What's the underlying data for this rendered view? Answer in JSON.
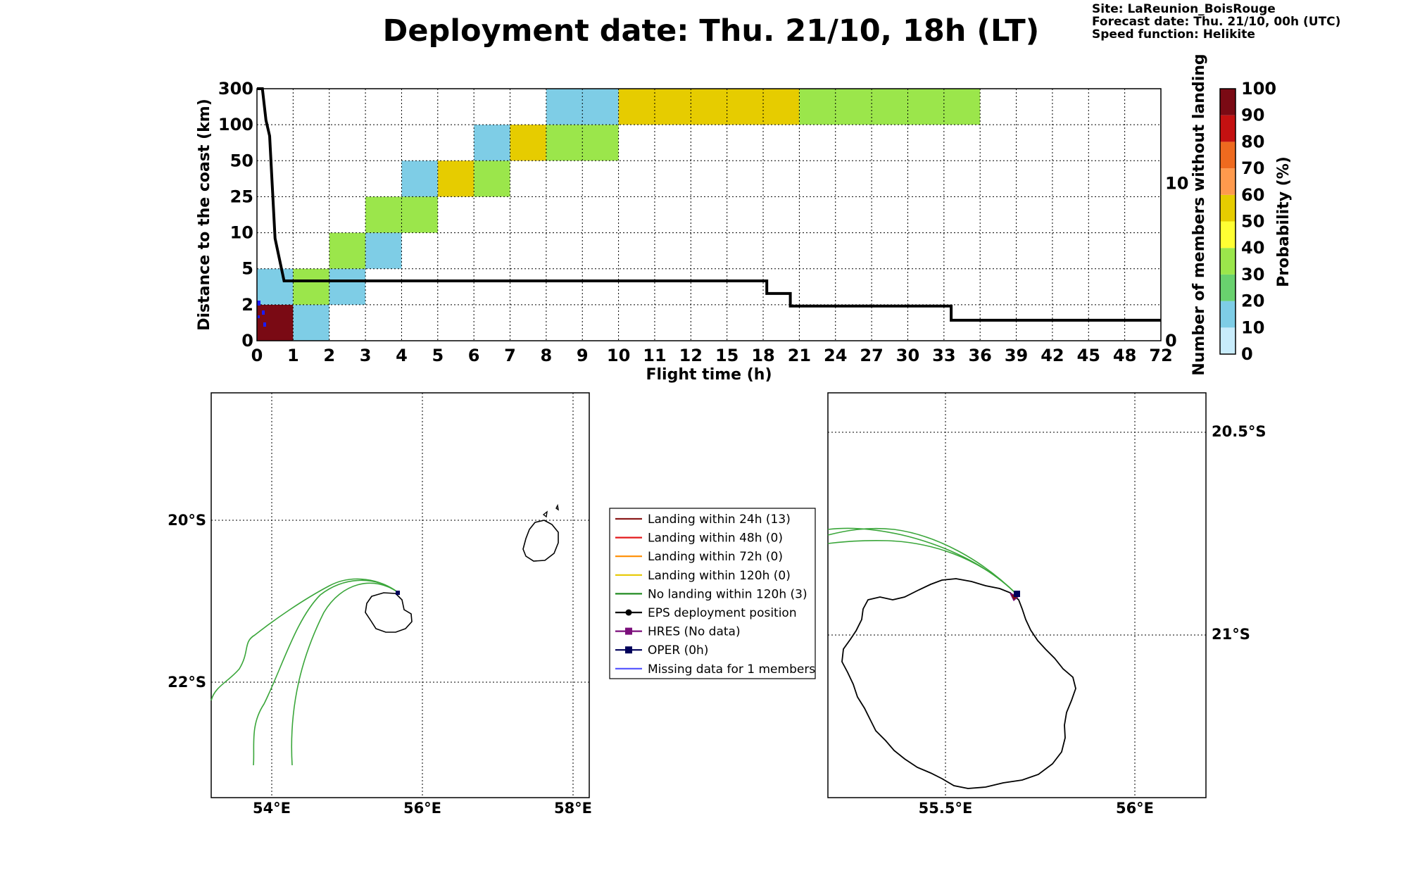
{
  "header": {
    "title": "Deployment date: Thu. 21/10, 18h (LT)",
    "site": "Site: LaReunion_BoisRouge",
    "forecast": "Forecast date: Thu. 21/10, 00h (UTC)",
    "speed": "Speed function: Helikite"
  },
  "chart_data": [
    {
      "type": "heatmap",
      "x_categories": [
        "0",
        "1",
        "2",
        "3",
        "4",
        "5",
        "6",
        "7",
        "8",
        "9",
        "10",
        "11",
        "12",
        "15",
        "18",
        "21",
        "24",
        "27",
        "30",
        "33",
        "36",
        "39",
        "42",
        "45",
        "48",
        "72"
      ],
      "y_categories": [
        "0",
        "2",
        "5",
        "10",
        "25",
        "50",
        "100",
        "300"
      ],
      "xlabel": "Flight time (h)",
      "ylabel": "Distance to the coast (km)",
      "y2label": "Number of members without landing",
      "y2_ticks": [
        "0",
        "10"
      ],
      "y2_range": [
        0,
        16
      ],
      "grid": true,
      "cells": [
        {
          "x0": 0,
          "x1": 1,
          "y0": 0,
          "y1": 1,
          "p": 90
        },
        {
          "x0": 1,
          "x1": 2,
          "y0": 0,
          "y1": 1,
          "p": 10
        },
        {
          "x0": 0,
          "x1": 1,
          "y0": 1,
          "y1": 2,
          "p": 10
        },
        {
          "x0": 1,
          "x1": 2,
          "y0": 1,
          "y1": 2,
          "p": 30
        },
        {
          "x0": 2,
          "x1": 3,
          "y0": 1,
          "y1": 2,
          "p": 10
        },
        {
          "x0": 2,
          "x1": 3,
          "y0": 2,
          "y1": 3,
          "p": 30
        },
        {
          "x0": 3,
          "x1": 4,
          "y0": 2,
          "y1": 3,
          "p": 10
        },
        {
          "x0": 3,
          "x1": 5,
          "y0": 3,
          "y1": 4,
          "p": 30
        },
        {
          "x0": 4,
          "x1": 5,
          "y0": 4,
          "y1": 5,
          "p": 10
        },
        {
          "x0": 5,
          "x1": 6,
          "y0": 4,
          "y1": 5,
          "p": 50
        },
        {
          "x0": 6,
          "x1": 7,
          "y0": 4,
          "y1": 5,
          "p": 30
        },
        {
          "x0": 6,
          "x1": 7,
          "y0": 5,
          "y1": 6,
          "p": 10
        },
        {
          "x0": 7,
          "x1": 8,
          "y0": 5,
          "y1": 6,
          "p": 50
        },
        {
          "x0": 8,
          "x1": 10,
          "y0": 5,
          "y1": 6,
          "p": 30
        },
        {
          "x0": 8,
          "x1": 10,
          "y0": 6,
          "y1": 7,
          "p": 10
        },
        {
          "x0": 10,
          "x1": 15,
          "y0": 6,
          "y1": 7,
          "p": 50
        },
        {
          "x0": 15,
          "x1": 20,
          "y0": 6,
          "y1": 7,
          "p": 30
        }
      ],
      "members_without_landing": {
        "x_pos": [
          0,
          0.15,
          0.25,
          0.35,
          0.5,
          0.75,
          1.0,
          2,
          5,
          10,
          13.75,
          14.1,
          14.1,
          14.75,
          14.75,
          19.2,
          19.2,
          25
        ],
        "y": [
          16,
          16,
          14,
          13,
          6.5,
          3.8,
          3.8,
          3.8,
          3.8,
          3.8,
          3.8,
          3.8,
          3.0,
          3.0,
          2.2,
          2.2,
          1.3,
          1.3
        ]
      },
      "colorbar": {
        "label": "Probability (%)",
        "ticks": [
          "0",
          "10",
          "20",
          "30",
          "40",
          "50",
          "60",
          "70",
          "80",
          "90",
          "100"
        ],
        "colors": [
          "#c8ecfb",
          "#7ecde6",
          "#69d16e",
          "#9be64b",
          "#ffff33",
          "#e6cc00",
          "#ff9a4d",
          "#ee6a1f",
          "#c41111",
          "#7a0a14"
        ]
      }
    },
    {
      "type": "map",
      "x_ticks": [
        "54°E",
        "56°E",
        "58°E"
      ],
      "y_ticks": [
        "20°S",
        "22°S"
      ]
    },
    {
      "type": "map",
      "x_ticks": [
        "55.5°E",
        "56°E"
      ],
      "y_ticks": [
        "20.5°S",
        "21°S"
      ]
    }
  ],
  "legend": {
    "items": [
      {
        "label": "Landing within 24h (13)",
        "color": "#8b1a1a",
        "marker": "none"
      },
      {
        "label": "Landing within 48h (0)",
        "color": "#e41a1c",
        "marker": "none"
      },
      {
        "label": "Landing within 72h (0)",
        "color": "#ff8c00",
        "marker": "none"
      },
      {
        "label": "Landing within 120h (0)",
        "color": "#e6c800",
        "marker": "none"
      },
      {
        "label": "No landing within 120h (3)",
        "color": "#228b22",
        "marker": "none"
      },
      {
        "label": "EPS deployment position",
        "color": "#000000",
        "marker": "circle"
      },
      {
        "label": "HRES (No data)",
        "color": "#7b0f7b",
        "marker": "square"
      },
      {
        "label": "OPER (0h)",
        "color": "#00005a",
        "marker": "square"
      },
      {
        "label": "Missing data for 1 members",
        "color": "#5050ff",
        "marker": "none"
      }
    ]
  }
}
